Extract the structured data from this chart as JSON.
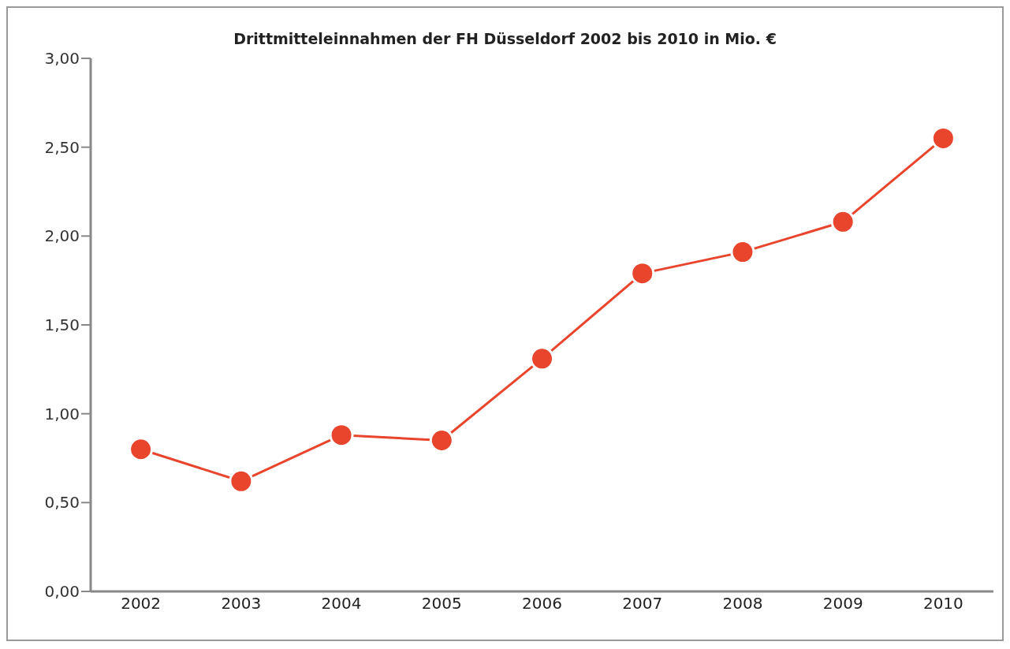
{
  "chart_data": {
    "type": "line",
    "title": "Drittmitteleinnahmen der FH Düsseldorf 2002 bis 2010 in Mio. €",
    "categories": [
      "2002",
      "2003",
      "2004",
      "2005",
      "2006",
      "2007",
      "2008",
      "2009",
      "2010"
    ],
    "series": [
      {
        "color": "#e8452c",
        "values": [
          0.8,
          0.62,
          0.88,
          0.85,
          1.31,
          1.79,
          1.91,
          2.08,
          2.55
        ]
      }
    ],
    "ylim": [
      0,
      3
    ],
    "yticks": [
      {
        "value": 0,
        "label": "0,00"
      },
      {
        "value": 0.5,
        "label": "0,50"
      },
      {
        "value": 1,
        "label": "1,00"
      },
      {
        "value": 1.5,
        "label": "1,50"
      },
      {
        "value": 2,
        "label": "2,00"
      },
      {
        "value": 2.5,
        "label": "2,50"
      },
      {
        "value": 3,
        "label": "3,00"
      }
    ],
    "marker": "circle",
    "line_style": "solid",
    "grid": false,
    "legend": false
  }
}
